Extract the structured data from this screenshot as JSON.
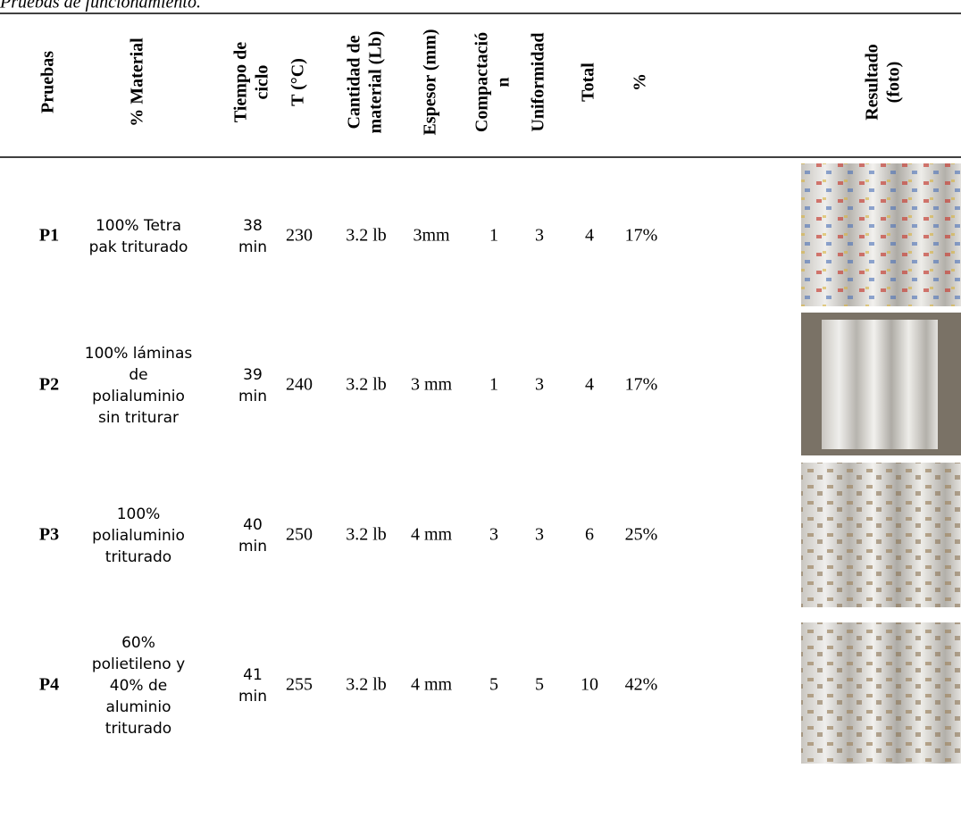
{
  "caption": "Pruebas de funcionamiento.",
  "table": {
    "headers": [
      [
        "Pruebas"
      ],
      [
        "% Material"
      ],
      [
        "Tiempo de",
        "ciclo"
      ],
      [
        "T (°C)"
      ],
      [
        "Cantidad de",
        "material (Lb)"
      ],
      [
        "Espesor (mm)"
      ],
      [
        "Compactació",
        "n"
      ],
      [
        "Uniformidad"
      ],
      [
        "Total"
      ],
      [
        "%"
      ],
      [
        "Resultado",
        "(foto)"
      ]
    ],
    "rows": [
      [
        [
          "P1"
        ],
        [
          "100% Tetra",
          "pak triturado"
        ],
        [
          "38",
          "min"
        ],
        [
          "230"
        ],
        [
          "3.2 lb"
        ],
        [
          "3mm"
        ],
        [
          "1"
        ],
        [
          "3"
        ],
        [
          "4"
        ],
        [
          "17%"
        ]
      ],
      [
        [
          "P2"
        ],
        [
          "100% láminas",
          "de",
          "polialuminio",
          "sin triturar"
        ],
        [
          "39",
          "min"
        ],
        [
          "240"
        ],
        [
          "3.2 lb"
        ],
        [
          "3 mm"
        ],
        [
          "1"
        ],
        [
          "3"
        ],
        [
          "4"
        ],
        [
          "17%"
        ]
      ],
      [
        [
          "P3"
        ],
        [
          "100%",
          "polialuminio",
          "triturado"
        ],
        [
          "40",
          "min"
        ],
        [
          "250"
        ],
        [
          "3.2 lb"
        ],
        [
          "4 mm"
        ],
        [
          "3"
        ],
        [
          "3"
        ],
        [
          "6"
        ],
        [
          "25%"
        ]
      ],
      [
        [
          "P4"
        ],
        [
          "60%",
          "polietileno y",
          "40% de",
          "aluminio",
          "triturado"
        ],
        [
          "41",
          "min"
        ],
        [
          "255"
        ],
        [
          "3.2 lb"
        ],
        [
          "4 mm"
        ],
        [
          "5"
        ],
        [
          "5"
        ],
        [
          "10"
        ],
        [
          "42%"
        ]
      ]
    ]
  }
}
